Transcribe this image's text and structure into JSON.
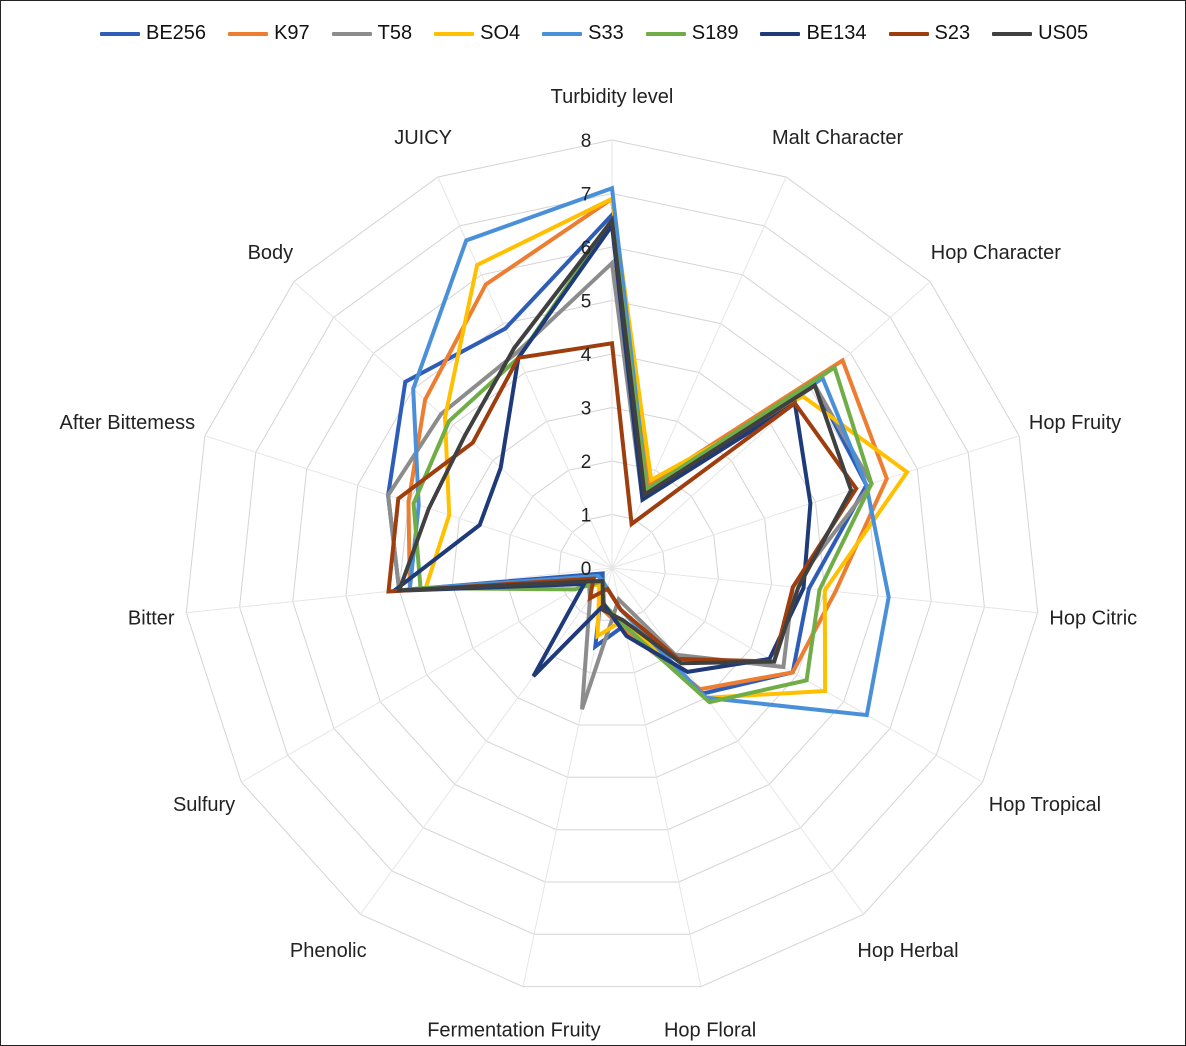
{
  "chart_data": {
    "type": "radar",
    "title": "",
    "rlim": [
      0,
      8
    ],
    "ticks": [
      "0",
      "1",
      "2",
      "3",
      "4",
      "5",
      "6",
      "7",
      "8"
    ],
    "grid": true,
    "legend_position": "top",
    "axes": [
      "Turbidity level",
      "Malt Character",
      "Hop Character",
      "Hop Fruity",
      "Hop Citric",
      "Hop Tropical",
      "Hop Herbal",
      "Hop Floral",
      "Fermentation Fruity",
      "Phenolic",
      "Sulfury",
      "Bitter",
      "After Bittemess",
      "Body",
      "JUICY"
    ],
    "series": [
      {
        "name": "BE256",
        "color": "#2E5DB8",
        "values": [
          6.6,
          1.6,
          5.1,
          5.0,
          3.7,
          3.9,
          2.9,
          1.1,
          1.5,
          0.3,
          0.2,
          4.0,
          4.4,
          5.2,
          4.9
        ]
      },
      {
        "name": "K97",
        "color": "#ED7D31",
        "values": [
          6.9,
          1.7,
          5.8,
          5.4,
          4.2,
          3.9,
          2.8,
          1.2,
          0.8,
          0.4,
          0.4,
          3.8,
          4.0,
          4.7,
          5.8
        ]
      },
      {
        "name": "T58",
        "color": "#8C8C8C",
        "values": [
          5.7,
          1.4,
          5.1,
          5.1,
          3.4,
          3.7,
          2.0,
          0.6,
          2.7,
          0.7,
          0.5,
          4.0,
          4.4,
          4.3,
          4.4
        ]
      },
      {
        "name": "SO4",
        "color": "#FFC000",
        "values": [
          6.9,
          1.8,
          4.8,
          5.8,
          4.0,
          4.6,
          3.0,
          1.0,
          1.3,
          0.4,
          0.6,
          3.5,
          3.2,
          4.2,
          6.2
        ]
      },
      {
        "name": "S33",
        "color": "#4A90D9",
        "values": [
          7.1,
          1.6,
          5.3,
          5.0,
          5.2,
          5.5,
          3.0,
          0.8,
          0.4,
          0.3,
          0.3,
          3.8,
          3.8,
          5.0,
          6.7
        ]
      },
      {
        "name": "S189",
        "color": "#70AD47",
        "values": [
          6.5,
          1.6,
          5.6,
          5.1,
          3.9,
          4.2,
          3.1,
          1.1,
          0.7,
          0.3,
          0.8,
          3.6,
          3.9,
          4.1,
          4.3
        ]
      },
      {
        "name": "BE134",
        "color": "#1F3A78",
        "values": [
          6.4,
          1.4,
          4.6,
          3.9,
          3.6,
          3.4,
          2.4,
          1.3,
          0.7,
          2.5,
          0.6,
          4.1,
          2.6,
          2.8,
          4.3
        ]
      },
      {
        "name": "S23",
        "color": "#9E3D0E",
        "values": [
          4.2,
          0.9,
          4.6,
          4.8,
          3.4,
          3.5,
          2.1,
          0.8,
          0.4,
          0.7,
          0.4,
          4.2,
          4.2,
          3.5,
          4.3
        ]
      },
      {
        "name": "US05",
        "color": "#404040",
        "values": [
          6.5,
          1.5,
          5.1,
          4.7,
          3.5,
          3.5,
          2.2,
          1.0,
          0.8,
          0.3,
          0.5,
          4.0,
          3.6,
          3.7,
          4.5
        ]
      }
    ]
  }
}
